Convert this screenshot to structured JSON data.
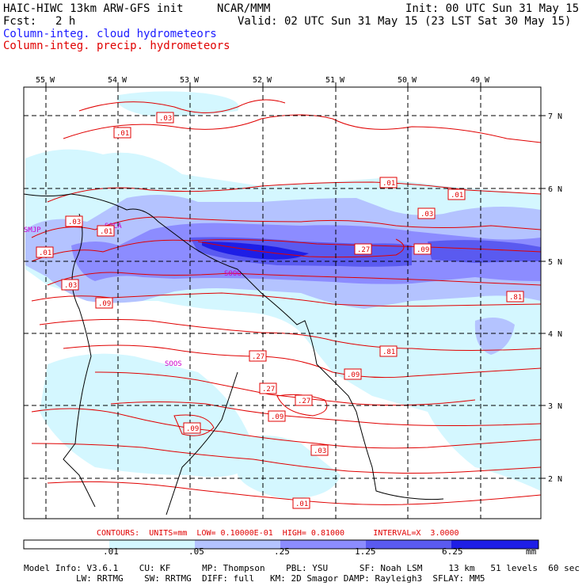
{
  "header": {
    "title_left": "HAIC-HIWC 13km ARW-GFS init",
    "org": "NCAR/MMM",
    "init": "Init: 00 UTC Sun 31 May 15",
    "fcst_label": "Fcst:",
    "fcst_value": "2 h",
    "valid": "Valid: 02 UTC Sun 31 May 15 (23 LST Sat 30 May 15)",
    "field1": "Column-integ. cloud hydrometeors",
    "field2": "Column-integ. precip. hydrometeors"
  },
  "map": {
    "lon_labels": [
      "55 W",
      "54 W",
      "53 W",
      "52 W",
      "51 W",
      "50 W",
      "49 W"
    ],
    "lat_labels": [
      "7 N",
      "6 N",
      "5 N",
      "4 N",
      "3 N",
      "2 N"
    ],
    "stations": [
      "SMJP",
      "SOCA",
      "SOOS",
      "SOOG"
    ],
    "contour_labels": [
      ".03",
      ".01",
      ".01",
      ".03",
      ".01",
      ".03",
      ".01",
      ".01",
      ".03",
      ".27",
      ".09",
      ".81",
      ".09",
      ".81",
      ".27",
      ".09",
      ".27",
      ".27",
      ".09",
      ".09",
      ".03",
      ".01"
    ]
  },
  "contours_info": "CONTOURS:  UNITS=mm  LOW= 0.10000E-01  HIGH= 0.81000      INTERVAL=X  3.0000",
  "colorbar": {
    "labels": [
      ".01",
      ".05",
      ".25",
      "1.25",
      "6.25"
    ],
    "unit": "mm",
    "colors": [
      "#ffffff",
      "#d4f7ff",
      "#b4c3ff",
      "#8c8cff",
      "#5a5af0",
      "#1e1ee6"
    ]
  },
  "model_info": {
    "line1": "Model Info: V3.6.1    CU: KF      MP: Thompson    PBL: YSU      SF: Noah LSM     13 km   51 levels  60 sec",
    "line2": "LW: RRTMG    SW: RRTMG  DIFF: full   KM: 2D Smagor DAMP: Rayleigh3  SFLAY: MM5"
  },
  "colors": {
    "contour": "#e00000",
    "cloud_text": "#1a1aff",
    "station": "#cc00cc"
  }
}
